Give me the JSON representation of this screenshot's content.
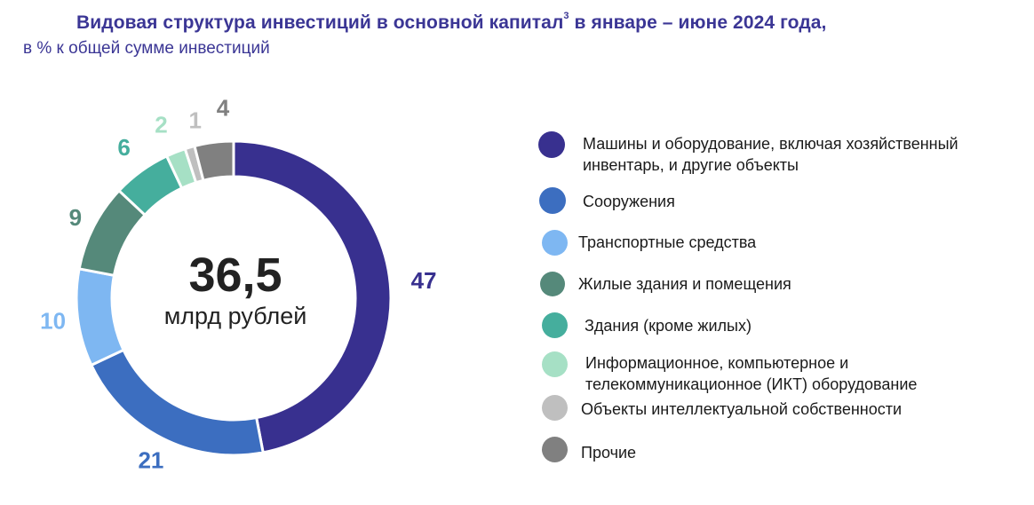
{
  "title": {
    "main": "Видовая структура инвестиций в основной капитал",
    "footnote": "3",
    "period": " в январе – июне 2024 года,",
    "subtitle": "в % к общей сумме инвестиций"
  },
  "center": {
    "value": "36,5",
    "unit": "млрд рублей"
  },
  "chart_data": {
    "type": "pie",
    "variant": "donut",
    "title": "Видовая структура инвестиций в основной капитал в январе – июне 2024 года",
    "subtitle": "в % к общей сумме инвестиций",
    "unit": "%",
    "total": "36,5 млрд рублей",
    "legend_position": "right",
    "slices": [
      {
        "label": "Машины и оборудование, включая хозяйственный инвентарь, и другие объекты",
        "value": 47,
        "display": "47",
        "color": "#38308F"
      },
      {
        "label": "Сооружения",
        "value": 21,
        "display": "21",
        "color": "#3C6EC0"
      },
      {
        "label": "Транспортные средства",
        "value": 10,
        "display": "10",
        "color": "#7EB7F2"
      },
      {
        "label": "Жилые здания и помещения",
        "value": 9,
        "display": "9",
        "color": "#55897A"
      },
      {
        "label": "Здания (кроме жилых)",
        "value": 6,
        "display": "6",
        "color": "#45AE9D"
      },
      {
        "label": "Информационное, компьютерное и телекоммуникационное (ИКТ) оборудование",
        "value": 2,
        "display": "2",
        "color": "#A6E0C5"
      },
      {
        "label": "Объекты интеллектуальной собственности",
        "value": 1,
        "display": "1",
        "color": "#BFBFBF"
      },
      {
        "label": "Прочие",
        "value": 4,
        "display": "4",
        "color": "#808080"
      }
    ]
  },
  "legend": {
    "items": [
      {
        "lines": [
          "Машины и оборудование, включая хозяйственный",
          "инвентарь, и другие объекты"
        ],
        "icon": "circle-marker"
      },
      {
        "lines": [
          "Сооружения"
        ],
        "icon": "circle-marker"
      },
      {
        "lines": [
          "Транспортные средства"
        ],
        "icon": "circle-marker"
      },
      {
        "lines": [
          "Жилые здания и помещения"
        ],
        "icon": "circle-marker"
      },
      {
        "lines": [
          "Здания (кроме жилых)"
        ],
        "icon": "circle-marker"
      },
      {
        "lines": [
          "Информационное, компьютерное и",
          "телекоммуникационное (ИКТ) оборудование"
        ],
        "icon": "circle-marker"
      },
      {
        "lines": [
          "Объекты интеллектуальной собственности"
        ],
        "icon": "circle-marker"
      },
      {
        "lines": [
          "Прочие"
        ],
        "icon": "circle-marker"
      }
    ]
  }
}
